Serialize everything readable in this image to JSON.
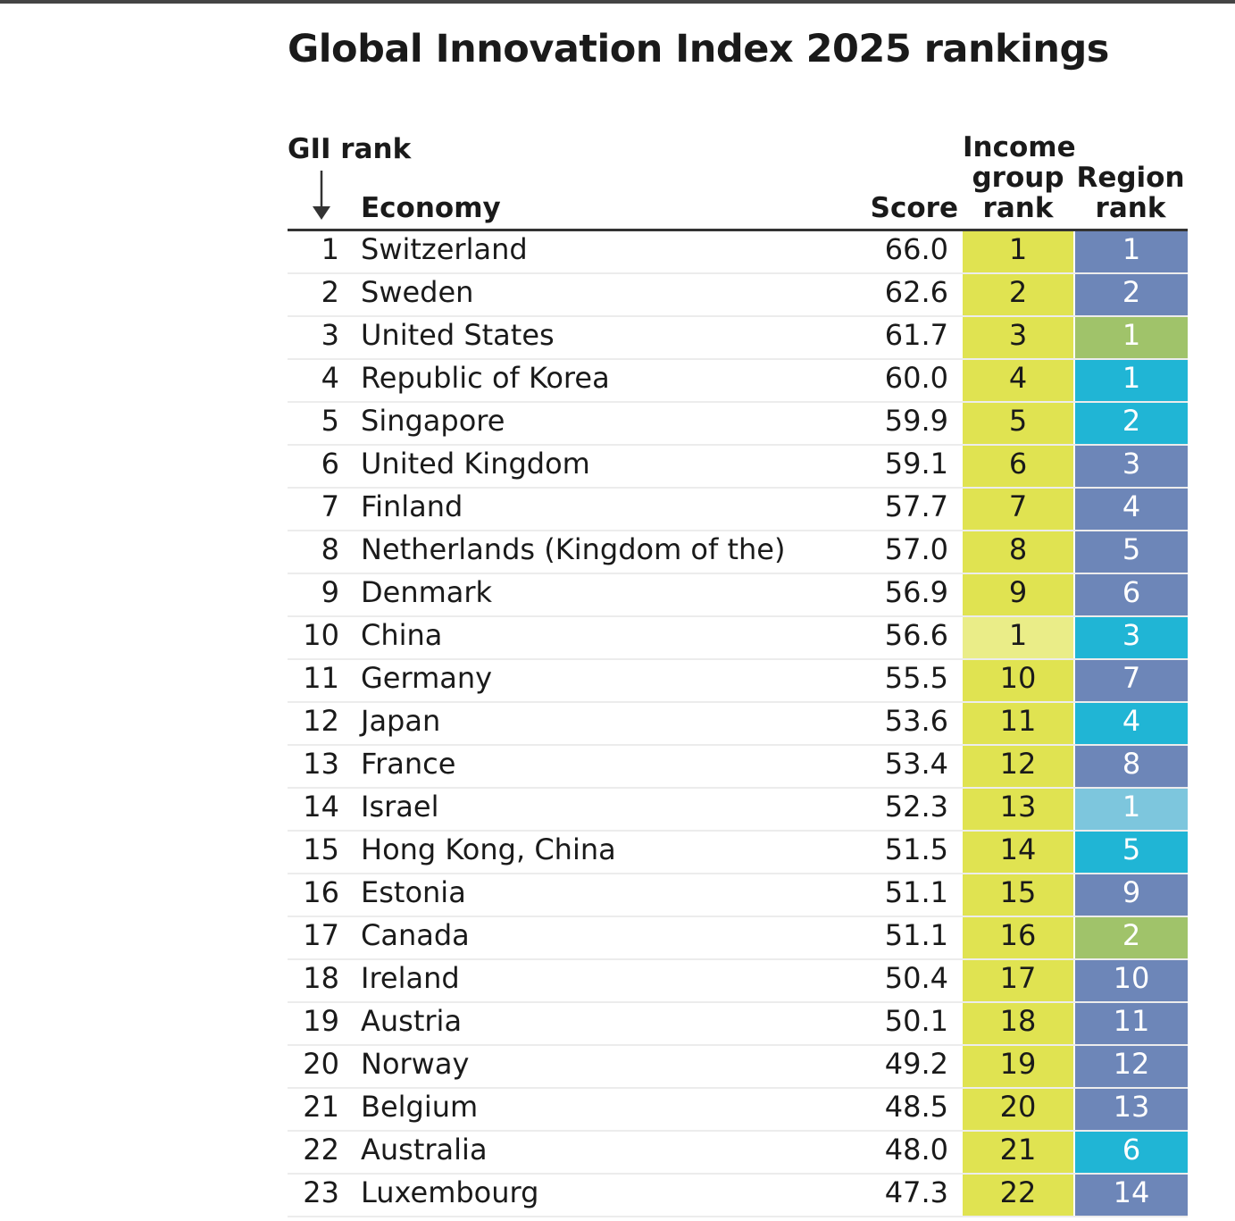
{
  "title": "Global Innovation Index 2025 rankings",
  "headers": {
    "rank": "GII rank",
    "economy": "Economy",
    "score": "Score",
    "income": "Income group rank",
    "region": "Region rank"
  },
  "colors": {
    "income_high": "#e0e351",
    "income_upper_middle": "#eaed88",
    "region_europe": "#6d86b8",
    "region_north_america": "#a0c36a",
    "region_asia_pacific": "#20b5d5",
    "region_north_africa_west_asia": "#7dc6dd"
  },
  "rows": [
    {
      "rank": "1",
      "economy": "Switzerland",
      "score": "66.0",
      "income": "1",
      "income_group": "income_high",
      "region": "1",
      "region_group": "region_europe"
    },
    {
      "rank": "2",
      "economy": "Sweden",
      "score": "62.6",
      "income": "2",
      "income_group": "income_high",
      "region": "2",
      "region_group": "region_europe"
    },
    {
      "rank": "3",
      "economy": "United States",
      "score": "61.7",
      "income": "3",
      "income_group": "income_high",
      "region": "1",
      "region_group": "region_north_america"
    },
    {
      "rank": "4",
      "economy": "Republic of Korea",
      "score": "60.0",
      "income": "4",
      "income_group": "income_high",
      "region": "1",
      "region_group": "region_asia_pacific"
    },
    {
      "rank": "5",
      "economy": "Singapore",
      "score": "59.9",
      "income": "5",
      "income_group": "income_high",
      "region": "2",
      "region_group": "region_asia_pacific"
    },
    {
      "rank": "6",
      "economy": "United Kingdom",
      "score": "59.1",
      "income": "6",
      "income_group": "income_high",
      "region": "3",
      "region_group": "region_europe"
    },
    {
      "rank": "7",
      "economy": "Finland",
      "score": "57.7",
      "income": "7",
      "income_group": "income_high",
      "region": "4",
      "region_group": "region_europe"
    },
    {
      "rank": "8",
      "economy": "Netherlands (Kingdom of the)",
      "score": "57.0",
      "income": "8",
      "income_group": "income_high",
      "region": "5",
      "region_group": "region_europe"
    },
    {
      "rank": "9",
      "economy": "Denmark",
      "score": "56.9",
      "income": "9",
      "income_group": "income_high",
      "region": "6",
      "region_group": "region_europe"
    },
    {
      "rank": "10",
      "economy": "China",
      "score": "56.6",
      "income": "1",
      "income_group": "income_upper_middle",
      "region": "3",
      "region_group": "region_asia_pacific"
    },
    {
      "rank": "11",
      "economy": "Germany",
      "score": "55.5",
      "income": "10",
      "income_group": "income_high",
      "region": "7",
      "region_group": "region_europe"
    },
    {
      "rank": "12",
      "economy": "Japan",
      "score": "53.6",
      "income": "11",
      "income_group": "income_high",
      "region": "4",
      "region_group": "region_asia_pacific"
    },
    {
      "rank": "13",
      "economy": "France",
      "score": "53.4",
      "income": "12",
      "income_group": "income_high",
      "region": "8",
      "region_group": "region_europe"
    },
    {
      "rank": "14",
      "economy": "Israel",
      "score": "52.3",
      "income": "13",
      "income_group": "income_high",
      "region": "1",
      "region_group": "region_north_africa_west_asia"
    },
    {
      "rank": "15",
      "economy": "Hong Kong, China",
      "score": "51.5",
      "income": "14",
      "income_group": "income_high",
      "region": "5",
      "region_group": "region_asia_pacific"
    },
    {
      "rank": "16",
      "economy": "Estonia",
      "score": "51.1",
      "income": "15",
      "income_group": "income_high",
      "region": "9",
      "region_group": "region_europe"
    },
    {
      "rank": "17",
      "economy": "Canada",
      "score": "51.1",
      "income": "16",
      "income_group": "income_high",
      "region": "2",
      "region_group": "region_north_america"
    },
    {
      "rank": "18",
      "economy": "Ireland",
      "score": "50.4",
      "income": "17",
      "income_group": "income_high",
      "region": "10",
      "region_group": "region_europe"
    },
    {
      "rank": "19",
      "economy": "Austria",
      "score": "50.1",
      "income": "18",
      "income_group": "income_high",
      "region": "11",
      "region_group": "region_europe"
    },
    {
      "rank": "20",
      "economy": "Norway",
      "score": "49.2",
      "income": "19",
      "income_group": "income_high",
      "region": "12",
      "region_group": "region_europe"
    },
    {
      "rank": "21",
      "economy": "Belgium",
      "score": "48.5",
      "income": "20",
      "income_group": "income_high",
      "region": "13",
      "region_group": "region_europe"
    },
    {
      "rank": "22",
      "economy": "Australia",
      "score": "48.0",
      "income": "21",
      "income_group": "income_high",
      "region": "6",
      "region_group": "region_asia_pacific"
    },
    {
      "rank": "23",
      "economy": "Luxembourg",
      "score": "47.3",
      "income": "22",
      "income_group": "income_high",
      "region": "14",
      "region_group": "region_europe"
    }
  ]
}
